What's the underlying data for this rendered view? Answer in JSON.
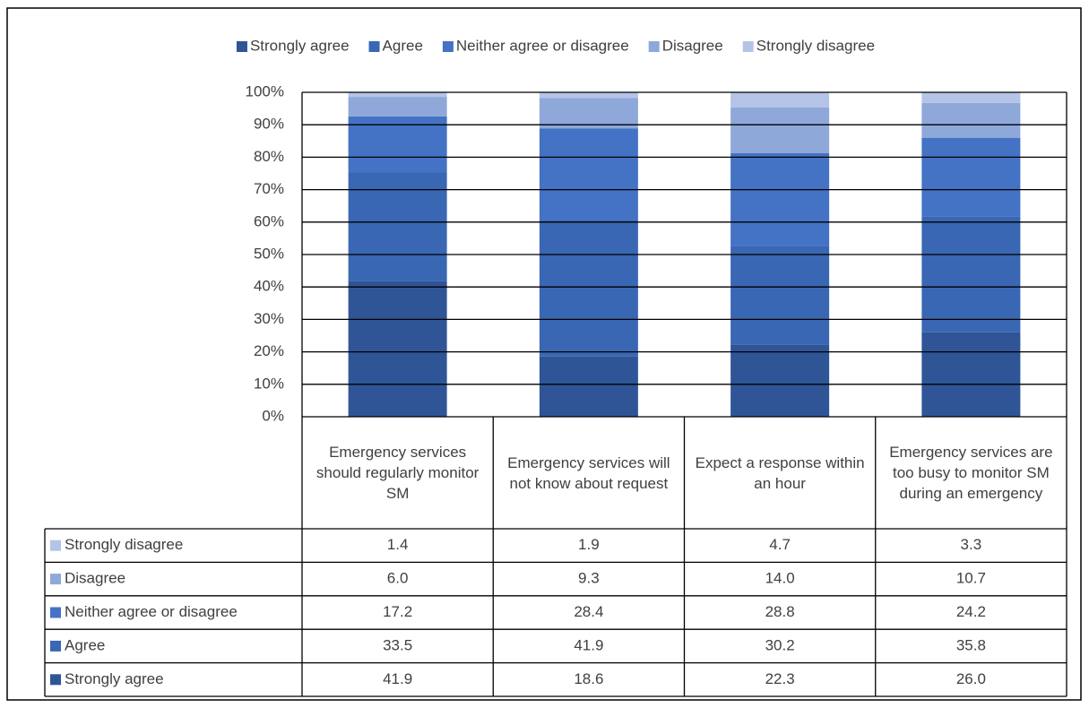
{
  "chart_data": {
    "type": "bar",
    "stacked": true,
    "categories": [
      "Emergency services should regularly monitor SM",
      "Emergency services will not know about  request",
      "Expect  a response within an hour",
      "Emergency services are too busy to monitor SM during an emergency"
    ],
    "series": [
      {
        "name": "Strongly agree",
        "color": "#2f5597",
        "values": [
          41.9,
          18.6,
          22.3,
          26.0
        ],
        "value_labels": [
          "41.9",
          "18.6",
          "22.3",
          "26.0"
        ]
      },
      {
        "name": "Agree",
        "color": "#3a67b3",
        "values": [
          33.5,
          41.9,
          30.2,
          35.8
        ],
        "value_labels": [
          "33.5",
          "41.9",
          "30.2",
          "35.8"
        ]
      },
      {
        "name": "Neither agree or disagree",
        "color": "#4472c4",
        "values": [
          17.2,
          28.4,
          28.8,
          24.2
        ],
        "value_labels": [
          "17.2",
          "28.4",
          "28.8",
          "24.2"
        ]
      },
      {
        "name": "Disagree",
        "color": "#8fa8da",
        "values": [
          6.0,
          9.3,
          14.0,
          10.7
        ],
        "value_labels": [
          "6.0",
          "9.3",
          "14.0",
          "10.7"
        ]
      },
      {
        "name": "Strongly disagree",
        "color": "#b4c4e7",
        "values": [
          1.4,
          1.9,
          4.7,
          3.3
        ],
        "value_labels": [
          "1.4",
          "1.9",
          "4.7",
          "3.3"
        ]
      }
    ],
    "ylim": [
      0,
      100
    ],
    "yticks": [
      {
        "value": 0,
        "label": "0%"
      },
      {
        "value": 10,
        "label": "10%"
      },
      {
        "value": 20,
        "label": "20%"
      },
      {
        "value": 30,
        "label": "30%"
      },
      {
        "value": 40,
        "label": "40%"
      },
      {
        "value": 50,
        "label": "50%"
      },
      {
        "value": 60,
        "label": "60%"
      },
      {
        "value": 70,
        "label": "70%"
      },
      {
        "value": 80,
        "label": "80%"
      },
      {
        "value": 90,
        "label": "90%"
      },
      {
        "value": 100,
        "label": "100%"
      }
    ],
    "grid": true,
    "legend": "top"
  }
}
